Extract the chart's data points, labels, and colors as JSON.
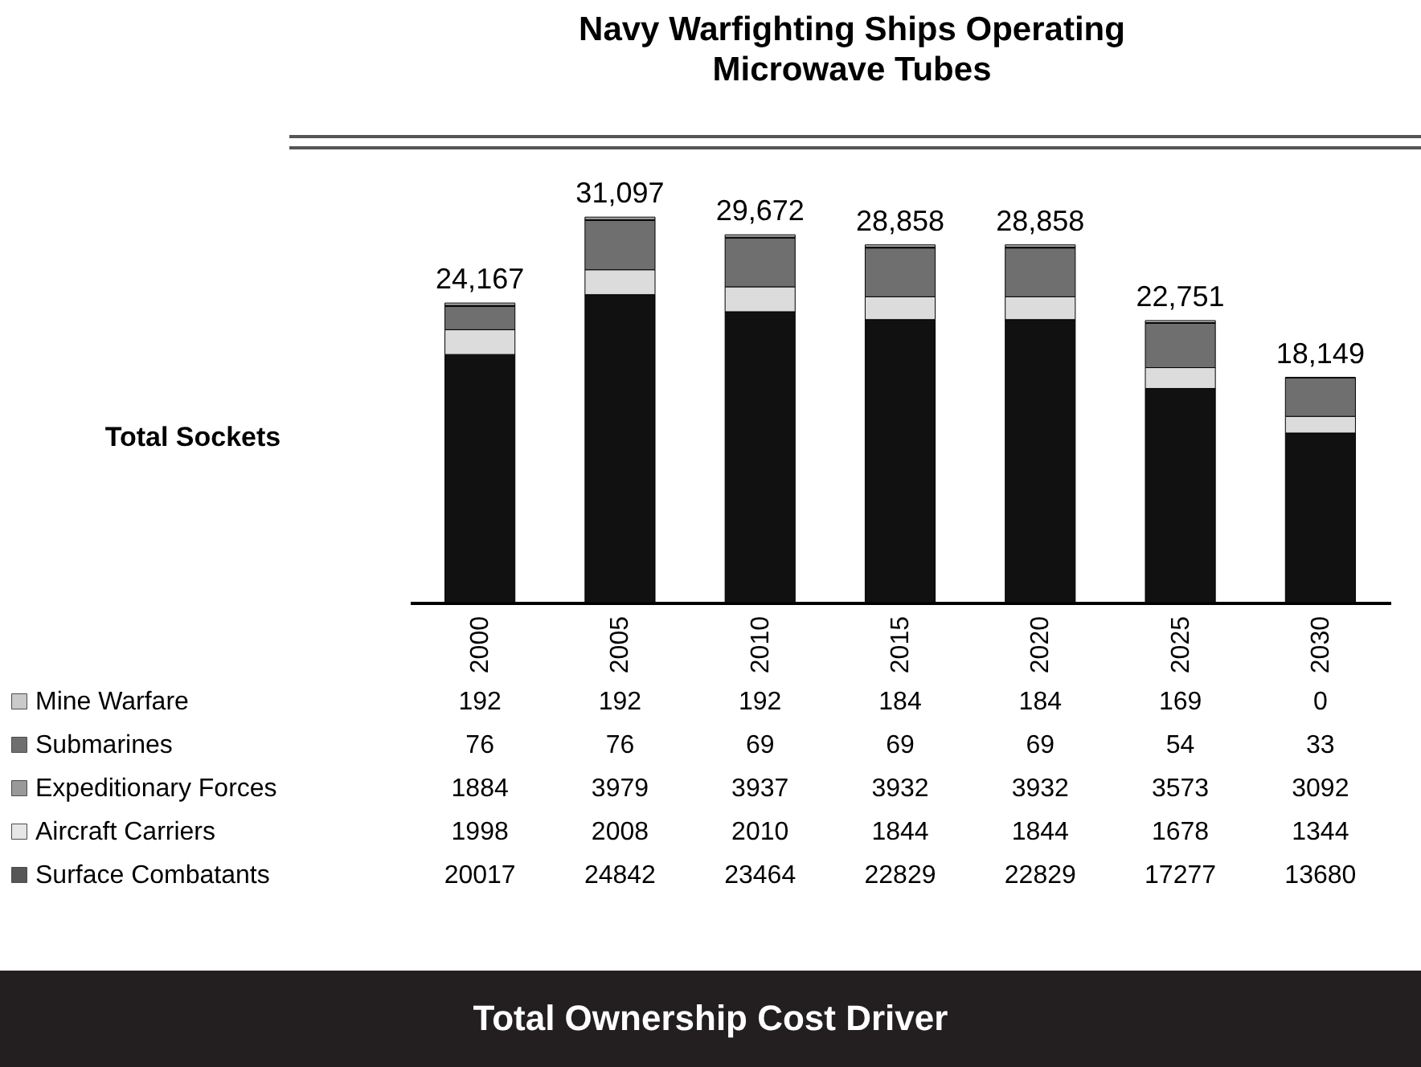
{
  "chart_data": {
    "type": "bar",
    "title": "Navy Warfighting Ships Operating Microwave Tubes",
    "ylabel": "Total Sockets",
    "categories": [
      "2000",
      "2005",
      "2010",
      "2015",
      "2020",
      "2025",
      "2030"
    ],
    "stacked": true,
    "data_labels": true,
    "legend": "bottom left",
    "tick_labels": "x",
    "series": [
      {
        "name": "Surface Combatants",
        "color": "#111111",
        "values": [
          20017,
          24842,
          23464,
          22829,
          22829,
          17277,
          13680
        ]
      },
      {
        "name": "Aircraft Carriers",
        "color": "#dcdcdc",
        "values": [
          1998,
          2008,
          2010,
          1844,
          1844,
          1678,
          1344
        ]
      },
      {
        "name": "Expeditionary Forces",
        "color": "#6f6f6f",
        "values": [
          1884,
          3979,
          3937,
          3932,
          3932,
          3573,
          3092
        ]
      },
      {
        "name": "Submarines",
        "color": "#333333",
        "values": [
          76,
          76,
          69,
          69,
          69,
          54,
          33
        ]
      },
      {
        "name": "Mine Warfare",
        "color": "#b5b5b5",
        "values": [
          192,
          192,
          192,
          184,
          184,
          169,
          0
        ]
      }
    ],
    "totals": [
      "24,167",
      "31,097",
      "29,672",
      "28,858",
      "28,858",
      "22,751",
      "18,149"
    ],
    "annotations": [
      "Total Ownership Cost Driver"
    ]
  }
}
